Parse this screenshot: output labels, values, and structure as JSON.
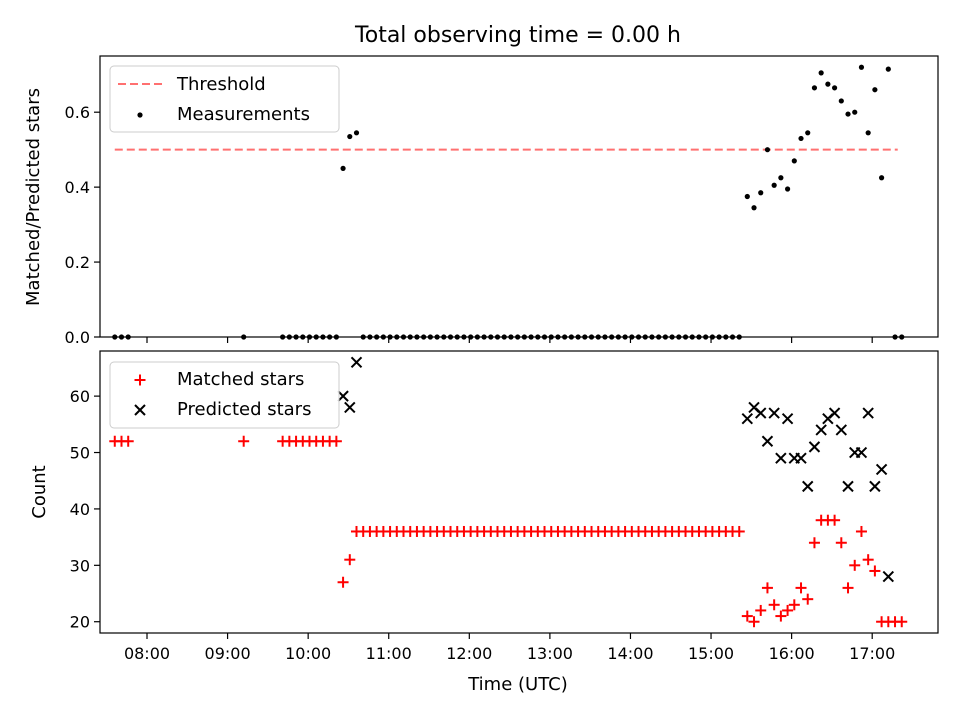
{
  "title": "Total observing time = 0.00 h",
  "xlabel": "Time (UTC)",
  "colors": {
    "threshold": "#ff7070",
    "measure": "#000000",
    "matched": "#ff0000",
    "predicted": "#000000",
    "frame": "#000000"
  },
  "chart_data": [
    {
      "type": "scatter",
      "ylabel": "Matched/Predicted stars",
      "xlim": [
        "07:25",
        "17:49"
      ],
      "ylim": [
        0.0,
        0.75
      ],
      "xticks": [
        "08:00",
        "09:00",
        "10:00",
        "11:00",
        "12:00",
        "13:00",
        "14:00",
        "15:00",
        "16:00",
        "17:00"
      ],
      "yticks": [
        "0.0",
        "0.2",
        "0.4",
        "0.6"
      ],
      "legend_position": "top-left",
      "threshold": {
        "name": "Threshold",
        "style": "dashed",
        "y": 0.5,
        "x": [
          "07:36",
          "17:19"
        ]
      },
      "series": [
        {
          "name": "Measurements",
          "marker": "dot",
          "points": [
            [
              "07:36",
              0
            ],
            [
              "07:41",
              0
            ],
            [
              "07:46",
              0
            ],
            [
              "09:12",
              0
            ],
            [
              "09:41",
              0
            ],
            [
              "09:46",
              0
            ],
            [
              "09:51",
              0
            ],
            [
              "09:56",
              0
            ],
            [
              "10:01",
              0
            ],
            [
              "10:06",
              0
            ],
            [
              "10:11",
              0
            ],
            [
              "10:16",
              0
            ],
            [
              "10:21",
              0
            ],
            [
              "10:26",
              0.45
            ],
            [
              "10:31",
              0.535
            ],
            [
              "10:36",
              0.545
            ],
            [
              "10:41",
              0
            ],
            [
              "10:46",
              0
            ],
            [
              "10:51",
              0
            ],
            [
              "10:56",
              0
            ],
            [
              "11:01",
              0
            ],
            [
              "11:06",
              0
            ],
            [
              "11:11",
              0
            ],
            [
              "11:16",
              0
            ],
            [
              "11:21",
              0
            ],
            [
              "11:26",
              0
            ],
            [
              "11:31",
              0
            ],
            [
              "11:36",
              0
            ],
            [
              "11:41",
              0
            ],
            [
              "11:46",
              0
            ],
            [
              "11:51",
              0
            ],
            [
              "11:56",
              0
            ],
            [
              "12:01",
              0
            ],
            [
              "12:06",
              0
            ],
            [
              "12:11",
              0
            ],
            [
              "12:16",
              0
            ],
            [
              "12:21",
              0
            ],
            [
              "12:26",
              0
            ],
            [
              "12:31",
              0
            ],
            [
              "12:36",
              0
            ],
            [
              "12:41",
              0
            ],
            [
              "12:46",
              0
            ],
            [
              "12:51",
              0
            ],
            [
              "12:56",
              0
            ],
            [
              "13:01",
              0
            ],
            [
              "13:06",
              0
            ],
            [
              "13:11",
              0
            ],
            [
              "13:16",
              0
            ],
            [
              "13:21",
              0
            ],
            [
              "13:26",
              0
            ],
            [
              "13:31",
              0
            ],
            [
              "13:36",
              0
            ],
            [
              "13:41",
              0
            ],
            [
              "13:46",
              0
            ],
            [
              "13:51",
              0
            ],
            [
              "13:56",
              0
            ],
            [
              "14:01",
              0
            ],
            [
              "14:06",
              0
            ],
            [
              "14:11",
              0
            ],
            [
              "14:16",
              0
            ],
            [
              "14:21",
              0
            ],
            [
              "14:26",
              0
            ],
            [
              "14:31",
              0
            ],
            [
              "14:36",
              0
            ],
            [
              "14:41",
              0
            ],
            [
              "14:46",
              0
            ],
            [
              "14:51",
              0
            ],
            [
              "14:56",
              0
            ],
            [
              "15:01",
              0
            ],
            [
              "15:06",
              0
            ],
            [
              "15:11",
              0
            ],
            [
              "15:16",
              0
            ],
            [
              "15:21",
              0
            ],
            [
              "15:27",
              0.375
            ],
            [
              "15:32",
              0.345
            ],
            [
              "15:37",
              0.385
            ],
            [
              "15:42",
              0.5
            ],
            [
              "15:47",
              0.405
            ],
            [
              "15:52",
              0.425
            ],
            [
              "15:57",
              0.395
            ],
            [
              "16:02",
              0.47
            ],
            [
              "16:07",
              0.53
            ],
            [
              "16:12",
              0.545
            ],
            [
              "16:17",
              0.665
            ],
            [
              "16:22",
              0.705
            ],
            [
              "16:27",
              0.675
            ],
            [
              "16:32",
              0.665
            ],
            [
              "16:37",
              0.63
            ],
            [
              "16:42",
              0.595
            ],
            [
              "16:47",
              0.6
            ],
            [
              "16:52",
              0.72
            ],
            [
              "16:57",
              0.545
            ],
            [
              "17:02",
              0.66
            ],
            [
              "17:07",
              0.425
            ],
            [
              "17:12",
              0.715
            ],
            [
              "17:17",
              0
            ],
            [
              "17:22",
              0
            ]
          ]
        }
      ]
    },
    {
      "type": "scatter",
      "ylabel": "Count",
      "xlim": [
        "07:25",
        "17:49"
      ],
      "ylim": [
        18,
        68
      ],
      "xticks": [
        "08:00",
        "09:00",
        "10:00",
        "11:00",
        "12:00",
        "13:00",
        "14:00",
        "15:00",
        "16:00",
        "17:00"
      ],
      "yticks": [
        "20",
        "30",
        "40",
        "50",
        "60"
      ],
      "legend_position": "top-left",
      "series": [
        {
          "name": "Matched stars",
          "marker": "plus",
          "points": [
            [
              "07:36",
              52
            ],
            [
              "07:41",
              52
            ],
            [
              "07:46",
              52
            ],
            [
              "09:12",
              52
            ],
            [
              "09:41",
              52
            ],
            [
              "09:46",
              52
            ],
            [
              "09:51",
              52
            ],
            [
              "09:56",
              52
            ],
            [
              "10:01",
              52
            ],
            [
              "10:06",
              52
            ],
            [
              "10:11",
              52
            ],
            [
              "10:16",
              52
            ],
            [
              "10:21",
              52
            ],
            [
              "10:26",
              27
            ],
            [
              "10:31",
              31
            ],
            [
              "10:36",
              36
            ],
            [
              "10:41",
              36
            ],
            [
              "10:46",
              36
            ],
            [
              "10:51",
              36
            ],
            [
              "10:56",
              36
            ],
            [
              "11:01",
              36
            ],
            [
              "11:06",
              36
            ],
            [
              "11:11",
              36
            ],
            [
              "11:16",
              36
            ],
            [
              "11:21",
              36
            ],
            [
              "11:26",
              36
            ],
            [
              "11:31",
              36
            ],
            [
              "11:36",
              36
            ],
            [
              "11:41",
              36
            ],
            [
              "11:46",
              36
            ],
            [
              "11:51",
              36
            ],
            [
              "11:56",
              36
            ],
            [
              "12:01",
              36
            ],
            [
              "12:06",
              36
            ],
            [
              "12:11",
              36
            ],
            [
              "12:16",
              36
            ],
            [
              "12:21",
              36
            ],
            [
              "12:26",
              36
            ],
            [
              "12:31",
              36
            ],
            [
              "12:36",
              36
            ],
            [
              "12:41",
              36
            ],
            [
              "12:46",
              36
            ],
            [
              "12:51",
              36
            ],
            [
              "12:56",
              36
            ],
            [
              "13:01",
              36
            ],
            [
              "13:06",
              36
            ],
            [
              "13:11",
              36
            ],
            [
              "13:16",
              36
            ],
            [
              "13:21",
              36
            ],
            [
              "13:26",
              36
            ],
            [
              "13:31",
              36
            ],
            [
              "13:36",
              36
            ],
            [
              "13:41",
              36
            ],
            [
              "13:46",
              36
            ],
            [
              "13:51",
              36
            ],
            [
              "13:56",
              36
            ],
            [
              "14:01",
              36
            ],
            [
              "14:06",
              36
            ],
            [
              "14:11",
              36
            ],
            [
              "14:16",
              36
            ],
            [
              "14:21",
              36
            ],
            [
              "14:26",
              36
            ],
            [
              "14:31",
              36
            ],
            [
              "14:36",
              36
            ],
            [
              "14:41",
              36
            ],
            [
              "14:46",
              36
            ],
            [
              "14:51",
              36
            ],
            [
              "14:56",
              36
            ],
            [
              "15:01",
              36
            ],
            [
              "15:06",
              36
            ],
            [
              "15:11",
              36
            ],
            [
              "15:16",
              36
            ],
            [
              "15:21",
              36
            ],
            [
              "15:27",
              21
            ],
            [
              "15:32",
              20
            ],
            [
              "15:37",
              22
            ],
            [
              "15:42",
              26
            ],
            [
              "15:47",
              23
            ],
            [
              "15:52",
              21
            ],
            [
              "15:57",
              22
            ],
            [
              "16:02",
              23
            ],
            [
              "16:07",
              26
            ],
            [
              "16:12",
              24
            ],
            [
              "16:17",
              34
            ],
            [
              "16:22",
              38
            ],
            [
              "16:27",
              38
            ],
            [
              "16:32",
              38
            ],
            [
              "16:37",
              34
            ],
            [
              "16:42",
              26
            ],
            [
              "16:47",
              30
            ],
            [
              "16:52",
              36
            ],
            [
              "16:57",
              31
            ],
            [
              "17:02",
              29
            ],
            [
              "17:07",
              20
            ],
            [
              "17:12",
              20
            ],
            [
              "17:17",
              20
            ],
            [
              "17:22",
              20
            ]
          ]
        },
        {
          "name": "Predicted stars",
          "marker": "x",
          "points": [
            [
              "10:26",
              60
            ],
            [
              "10:31",
              58
            ],
            [
              "10:36",
              66
            ],
            [
              "15:27",
              56
            ],
            [
              "15:32",
              58
            ],
            [
              "15:37",
              57
            ],
            [
              "15:42",
              52
            ],
            [
              "15:47",
              57
            ],
            [
              "15:52",
              49
            ],
            [
              "15:57",
              56
            ],
            [
              "16:02",
              49
            ],
            [
              "16:07",
              49
            ],
            [
              "16:12",
              44
            ],
            [
              "16:17",
              51
            ],
            [
              "16:22",
              54
            ],
            [
              "16:27",
              56
            ],
            [
              "16:32",
              57
            ],
            [
              "16:37",
              54
            ],
            [
              "16:42",
              44
            ],
            [
              "16:47",
              50
            ],
            [
              "16:52",
              50
            ],
            [
              "16:57",
              57
            ],
            [
              "17:02",
              44
            ],
            [
              "17:07",
              47
            ],
            [
              "17:12",
              28
            ]
          ]
        }
      ]
    }
  ]
}
